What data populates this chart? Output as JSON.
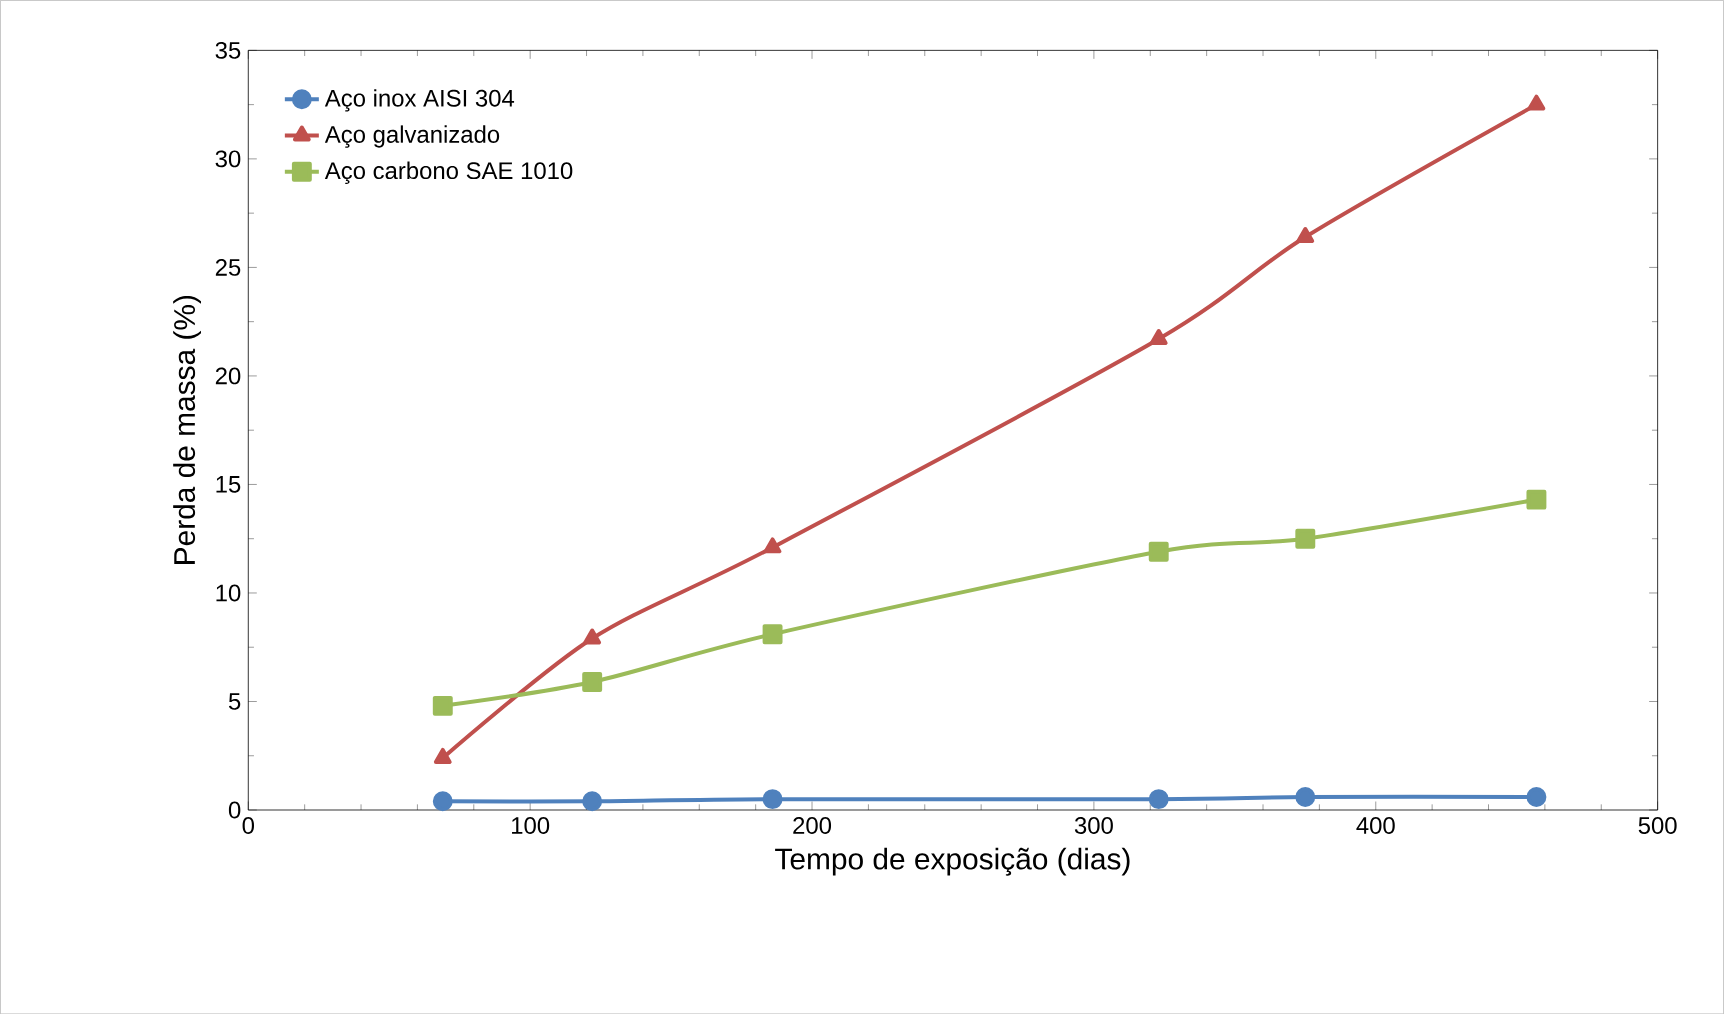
{
  "chart_data": {
    "type": "line",
    "xlabel": "Tempo de exposição (dias)",
    "ylabel": "Perda de massa (%)",
    "x": [
      69,
      122,
      186,
      323,
      375,
      457
    ],
    "series": [
      {
        "name": "Aço inox AISI 304",
        "color": "#4f81bd",
        "marker": "circle",
        "values": [
          0.4,
          0.4,
          0.5,
          0.5,
          0.6,
          0.6
        ]
      },
      {
        "name": "Aço galvanizado",
        "color": "#c0504d",
        "marker": "triangle",
        "values": [
          2.4,
          7.9,
          12.1,
          21.7,
          26.4,
          32.5
        ]
      },
      {
        "name": "Aço carbono SAE 1010",
        "color": "#9bbb59",
        "marker": "square",
        "values": [
          4.8,
          5.9,
          8.1,
          11.9,
          12.5,
          14.3
        ]
      }
    ],
    "xlim": [
      0,
      500
    ],
    "ylim": [
      0,
      35
    ],
    "xticks": [
      0,
      100,
      200,
      300,
      400,
      500
    ],
    "yticks": [
      0,
      5,
      10,
      15,
      20,
      25,
      30,
      35
    ],
    "grid": false,
    "legend": "top left",
    "line_style": "solid"
  }
}
